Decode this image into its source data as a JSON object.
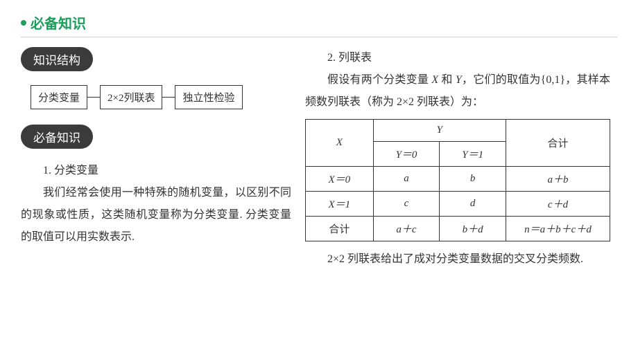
{
  "header": {
    "title": "必备知识",
    "bullet_color": "#1a9e5a",
    "text_color": "#1a9e5a"
  },
  "left": {
    "pill1": "知识结构",
    "flow": {
      "box1": "分类变量",
      "box2": "2×2列联表",
      "box3": "独立性检验"
    },
    "pill2": "必备知识",
    "sec1_title": "1. 分类变量",
    "sec1_body": "我们经常会使用一种特殊的随机变量，以区别不同的现象或性质，这类随机变量称为分类变量. 分类变量的取值可以用实数表示."
  },
  "right": {
    "sec2_title": "2. 列联表",
    "sec2_intro_a": "假设有两个分类变量 ",
    "sec2_intro_b": " 和 ",
    "sec2_intro_c": "，它们的取值为{0,1}，其样本频数列联表（称为 2×2 列联表）为：",
    "X": "X",
    "Y": "Y",
    "table": {
      "col_x": "X",
      "col_y": "Y",
      "col_total": "合计",
      "y0": "Y＝0",
      "y1": "Y＝1",
      "x0": "X＝0",
      "x1": "X＝1",
      "row_total": "合计",
      "a": "a",
      "b": "b",
      "c": "c",
      "d": "d",
      "ab": "a＋b",
      "cd": "c＋d",
      "ac": "a＋c",
      "bd": "b＋d",
      "n": "n＝a＋b＋c＋d"
    },
    "sec2_outro": "2×2 列联表给出了成对分类变量数据的交叉分类频数."
  },
  "style": {
    "pill_bg": "#3b3b3b",
    "pill_fg": "#ffffff",
    "body_color": "#333333",
    "border_color": "#333333",
    "font_body": "SimSun",
    "font_heading": "Microsoft YaHei",
    "page_bg": "#ffffff",
    "line_color": "#d0d0d0",
    "body_fontsize": 16,
    "header_fontsize": 20,
    "pill_fontsize": 17,
    "table_fontsize": 15
  }
}
